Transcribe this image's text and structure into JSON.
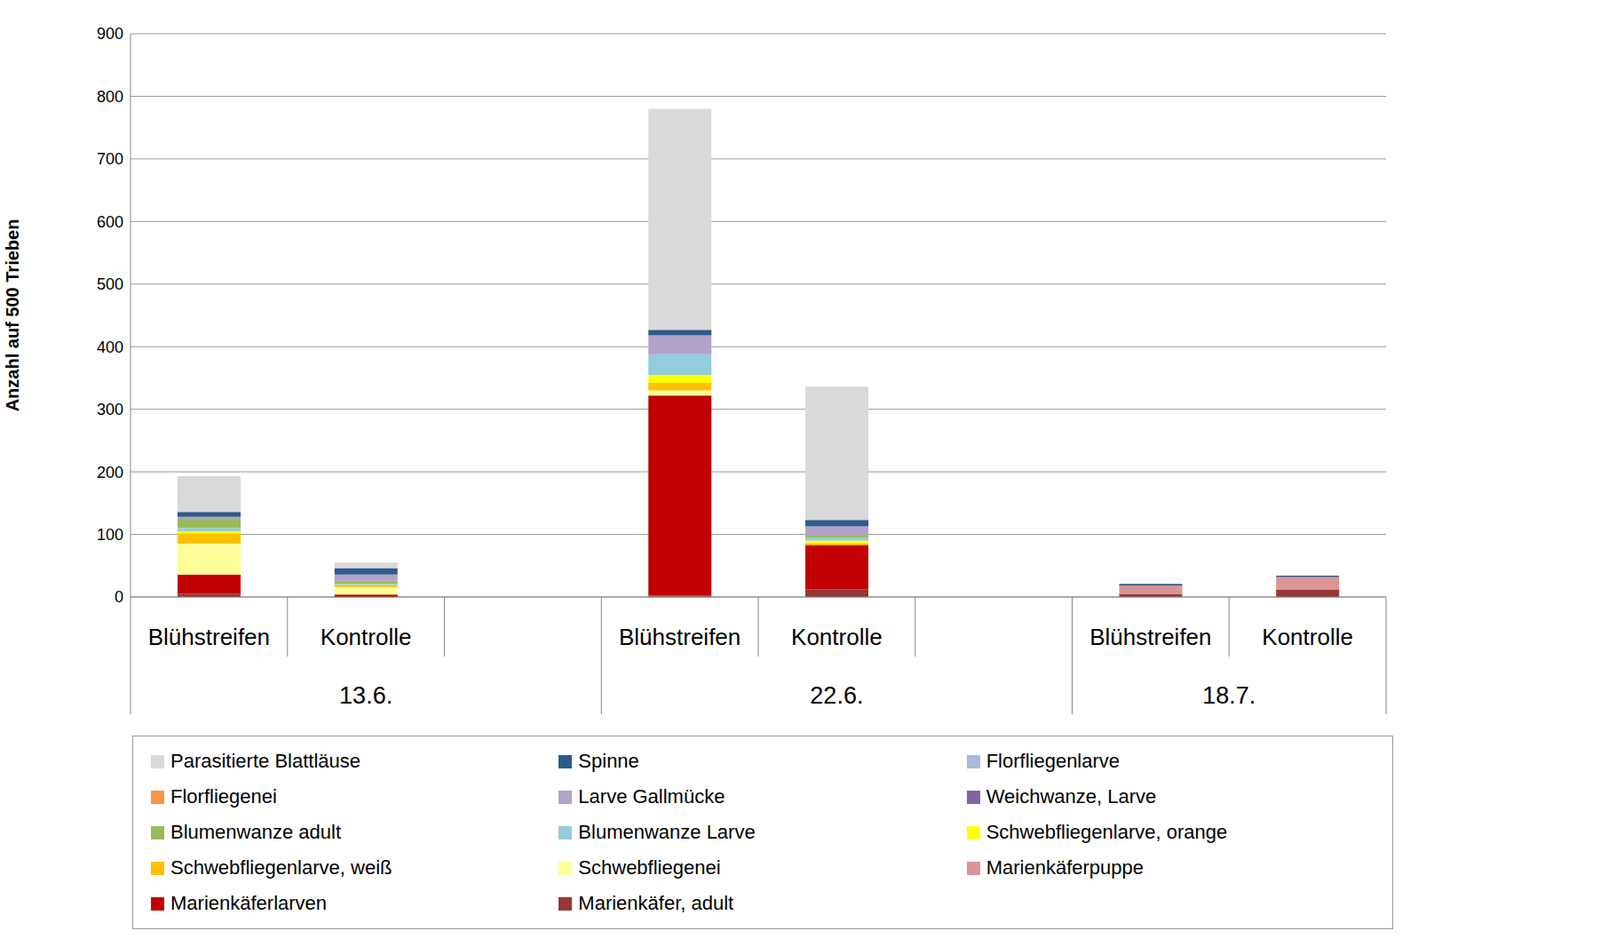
{
  "chart_data": {
    "type": "bar",
    "stacked": true,
    "grid": true,
    "legend": "bottom",
    "y_label": "Anzahl auf 500 Trieben",
    "categories": [
      "Blühstreifen",
      "Kontrolle",
      null,
      "Blühstreifen",
      "Kontrolle",
      null,
      "Blühstreifen",
      "Kontrolle"
    ],
    "group_labels": [
      "13.6.",
      "22.6.",
      "18.7."
    ],
    "group_sizes": [
      3,
      3,
      2
    ],
    "ylim": [
      0,
      900
    ],
    "yticks": [
      0,
      100,
      200,
      300,
      400,
      500,
      600,
      700,
      800,
      900
    ],
    "series": [
      {
        "name": "Parasitierte Blattläuse",
        "color": "#d9d9d9",
        "values": [
          57,
          9,
          null,
          353,
          213,
          null,
          0,
          0
        ]
      },
      {
        "name": "Spinne",
        "color": "#2f5b8c",
        "values": [
          8,
          10,
          null,
          9,
          10,
          null,
          3,
          2
        ]
      },
      {
        "name": "Florfliegenlarve",
        "color": "#a9b9dc",
        "values": [
          0,
          0,
          null,
          0,
          0,
          null,
          0,
          0
        ]
      },
      {
        "name": "Florfliegenei",
        "color": "#f79646",
        "values": [
          0,
          0,
          null,
          0,
          0,
          null,
          0,
          0
        ]
      },
      {
        "name": "Larve Gallmücke",
        "color": "#b3a2c7",
        "values": [
          3,
          10,
          null,
          30,
          15,
          null,
          0,
          0
        ]
      },
      {
        "name": "Weichwanze, Larve",
        "color": "#8064a2",
        "values": [
          0,
          0,
          null,
          0,
          0,
          null,
          0,
          0
        ]
      },
      {
        "name": "Blumenwanze adult",
        "color": "#9bbb59",
        "values": [
          15,
          5,
          null,
          0,
          3,
          null,
          0,
          0
        ]
      },
      {
        "name": "Blumenwanze Larve",
        "color": "#93cddd",
        "values": [
          5,
          2,
          null,
          33,
          5,
          null,
          0,
          0
        ]
      },
      {
        "name": "Schwebfliegenlarve, orange",
        "color": "#ffff00",
        "values": [
          3,
          0,
          null,
          13,
          4,
          null,
          0,
          0
        ]
      },
      {
        "name": "Schwebfliegenlarve, weiß",
        "color": "#ffc000",
        "values": [
          17,
          3,
          null,
          12,
          3,
          null,
          0,
          0
        ]
      },
      {
        "name": "Schwebfliegenei",
        "color": "#ffff99",
        "values": [
          49,
          12,
          null,
          8,
          0,
          null,
          0,
          0
        ]
      },
      {
        "name": "Marienkäferpuppe",
        "color": "#d99594",
        "values": [
          0,
          0,
          null,
          0,
          0,
          null,
          13,
          20
        ]
      },
      {
        "name": "Marienkäferlarven",
        "color": "#c00000",
        "values": [
          31,
          4,
          null,
          320,
          71,
          null,
          0,
          0
        ]
      },
      {
        "name": "Marienkäfer, adult",
        "color": "#953735",
        "values": [
          5,
          0,
          null,
          2,
          12,
          null,
          5,
          12
        ]
      }
    ]
  }
}
